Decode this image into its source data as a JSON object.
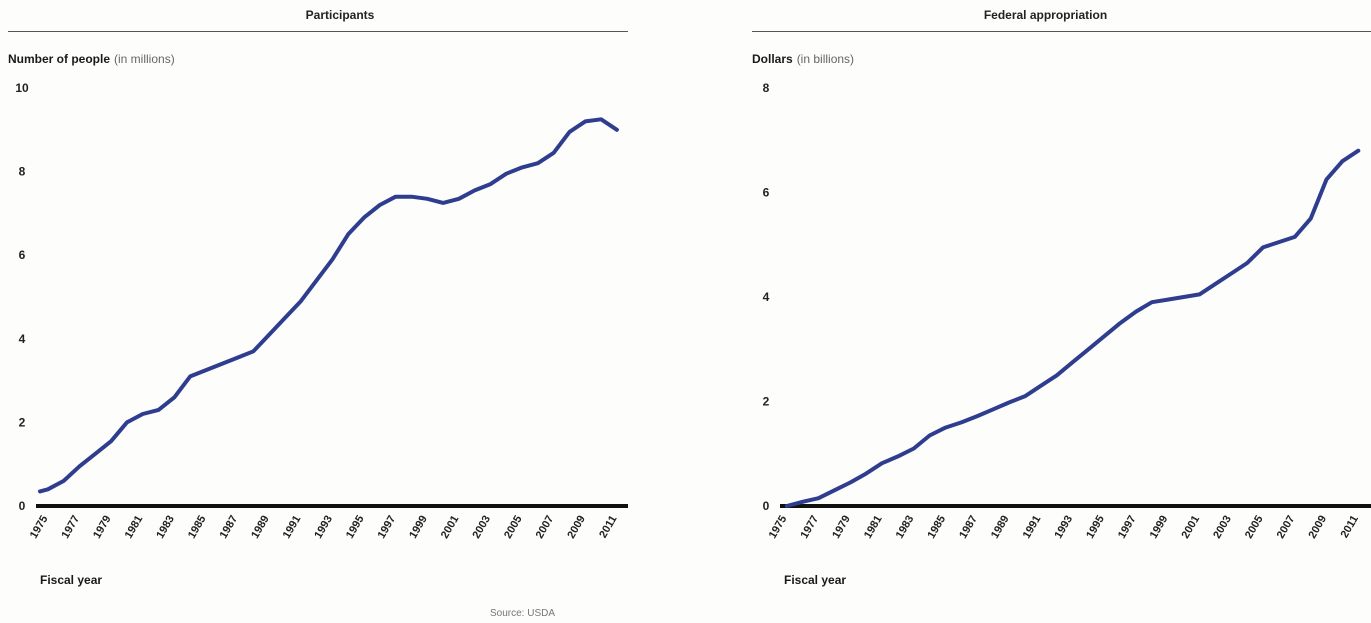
{
  "source": "Source: USDA",
  "chart_data": [
    {
      "type": "line",
      "title": "Participants",
      "ylabel": "Number of people",
      "ylabel_unit": "(in millions)",
      "xlabel": "Fiscal year",
      "ylim": [
        0,
        10
      ],
      "yticks": [
        0,
        2,
        4,
        6,
        8,
        10
      ],
      "xticks": [
        1975,
        1977,
        1979,
        1981,
        1983,
        1985,
        1987,
        1989,
        1991,
        1993,
        1995,
        1997,
        1999,
        2001,
        2003,
        2005,
        2007,
        2009,
        2011
      ],
      "xlim": [
        1974.5,
        2011.7
      ],
      "line_color": "#2f3d8f",
      "series": [
        {
          "x": [
            1974.5,
            1975,
            1976,
            1977,
            1978,
            1979,
            1980,
            1981,
            1982,
            1983,
            1984,
            1985,
            1986,
            1987,
            1988,
            1989,
            1990,
            1991,
            1992,
            1993,
            1994,
            1995,
            1996,
            1997,
            1998,
            1999,
            2000,
            2001,
            2002,
            2003,
            2004,
            2005,
            2006,
            2007,
            2008,
            2009,
            2010,
            2011
          ],
          "values": [
            0.35,
            0.4,
            0.6,
            0.95,
            1.25,
            1.55,
            2.0,
            2.2,
            2.3,
            2.6,
            3.1,
            3.25,
            3.4,
            3.55,
            3.7,
            4.1,
            4.5,
            4.9,
            5.4,
            5.9,
            6.5,
            6.9,
            7.2,
            7.4,
            7.4,
            7.35,
            7.25,
            7.35,
            7.55,
            7.7,
            7.95,
            8.1,
            8.2,
            8.45,
            8.95,
            9.2,
            9.25,
            9.0
          ]
        }
      ]
    },
    {
      "type": "line",
      "title": "Federal appropriation",
      "ylabel": "Dollars",
      "ylabel_unit": "(in billions)",
      "xlabel": "Fiscal year",
      "ylim": [
        0,
        8
      ],
      "yticks": [
        0,
        2,
        4,
        6,
        8
      ],
      "xticks": [
        1975,
        1977,
        1979,
        1981,
        1983,
        1985,
        1987,
        1989,
        1991,
        1993,
        1995,
        1997,
        1999,
        2001,
        2003,
        2005,
        2007,
        2009,
        2011
      ],
      "xlim": [
        1974.7,
        2011.8
      ],
      "line_color": "#2f3d8f",
      "series": [
        {
          "x": [
            1975,
            1976,
            1977,
            1978,
            1979,
            1980,
            1981,
            1982,
            1983,
            1984,
            1985,
            1986,
            1987,
            1988,
            1989,
            1990,
            1991,
            1992,
            1993,
            1994,
            1995,
            1996,
            1997,
            1998,
            1999,
            2000,
            2001,
            2002,
            2003,
            2004,
            2005,
            2006,
            2007,
            2008,
            2009,
            2010,
            2011
          ],
          "values": [
            0.0,
            0.08,
            0.15,
            0.3,
            0.45,
            0.62,
            0.82,
            0.95,
            1.1,
            1.35,
            1.5,
            1.6,
            1.72,
            1.85,
            1.98,
            2.1,
            2.3,
            2.5,
            2.75,
            3.0,
            3.25,
            3.5,
            3.72,
            3.9,
            3.95,
            4.0,
            4.05,
            4.25,
            4.45,
            4.65,
            4.95,
            5.05,
            5.15,
            5.5,
            6.25,
            6.6,
            6.8
          ]
        }
      ]
    }
  ]
}
